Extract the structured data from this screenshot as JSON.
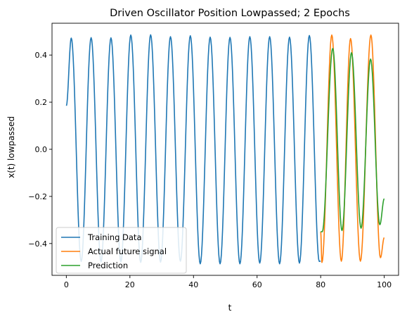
{
  "chart_data": {
    "type": "line",
    "title": "Driven Oscillator Position Lowpassed; 2 Epochs",
    "xlabel": "t",
    "ylabel": "x(t) lowpassed",
    "xlim": [
      -4.5,
      104.5
    ],
    "ylim": [
      -0.535,
      0.535
    ],
    "xticks": [
      0,
      20,
      40,
      60,
      80,
      100
    ],
    "yticks": [
      -0.4,
      -0.2,
      0.0,
      0.2,
      0.4
    ],
    "xtick_labels": [
      "0",
      "20",
      "40",
      "60",
      "80",
      "100"
    ],
    "ytick_labels": [
      "−0.4",
      "−0.2",
      "0.0",
      "0.2",
      "0.4"
    ],
    "grid": false,
    "legend_position": "lower-left",
    "series": [
      {
        "name": "Training Data",
        "color": "#1f77b4",
        "x": [
          0,
          1.56,
          4.68,
          7.8,
          10.92,
          14.04,
          17.16,
          20.28,
          23.4,
          26.52,
          29.64,
          32.76,
          35.88,
          39.0,
          42.12,
          45.24,
          48.36,
          51.48,
          54.6,
          57.72,
          60.84,
          63.96,
          67.08,
          70.2,
          73.32,
          76.44,
          79.56,
          80
        ],
        "y": [
          0.185,
          0.472,
          -0.476,
          0.474,
          -0.478,
          0.473,
          -0.478,
          0.485,
          -0.48,
          0.486,
          -0.479,
          0.478,
          -0.475,
          0.482,
          -0.486,
          0.476,
          -0.486,
          0.475,
          -0.486,
          0.478,
          -0.483,
          0.478,
          -0.486,
          0.476,
          -0.483,
          0.483,
          -0.476,
          -0.475
        ]
      },
      {
        "name": "Actual future signal",
        "color": "#ff7f0e",
        "x": [
          80,
          80.4,
          83.5,
          86.5,
          89.4,
          92.5,
          95.8,
          98.8,
          100
        ],
        "y": [
          -0.35,
          -0.48,
          0.485,
          -0.475,
          0.47,
          -0.475,
          0.485,
          -0.46,
          -0.375
        ]
      },
      {
        "name": "Prediction",
        "color": "#2ca02c",
        "x": [
          80,
          80.5,
          83.8,
          86.7,
          89.7,
          92.7,
          95.7,
          98.6,
          100
        ],
        "y": [
          -0.35,
          -0.35,
          0.428,
          -0.345,
          0.41,
          -0.335,
          0.383,
          -0.32,
          -0.21
        ]
      }
    ]
  }
}
